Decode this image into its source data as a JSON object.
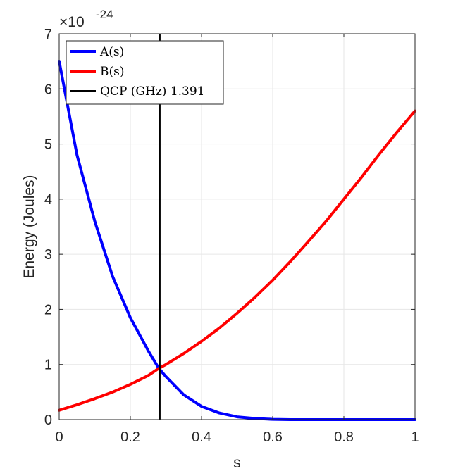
{
  "chart_data": {
    "type": "line",
    "xlabel": "s",
    "ylabel": "Energy (Joules)",
    "exponent_label": {
      "base": "×10",
      "power": "-24"
    },
    "xlim": [
      0,
      1
    ],
    "ylim": [
      0,
      7
    ],
    "x_ticks": [
      0,
      0.2,
      0.4,
      0.6,
      0.8,
      1
    ],
    "x_tick_labels": [
      "0",
      "0.2",
      "0.4",
      "0.6",
      "0.8",
      "1"
    ],
    "y_ticks": [
      0,
      1,
      2,
      3,
      4,
      5,
      6,
      7
    ],
    "y_tick_labels": [
      "0",
      "1",
      "2",
      "3",
      "4",
      "5",
      "6",
      "7"
    ],
    "grid": true,
    "legend_position": "top-left",
    "series": [
      {
        "name": "A(s)",
        "color": "#0000ff",
        "x": [
          0,
          0.05,
          0.1,
          0.15,
          0.2,
          0.25,
          0.28,
          0.3,
          0.35,
          0.4,
          0.45,
          0.5,
          0.55,
          0.6,
          0.65,
          0.7,
          0.8,
          0.9,
          1.0
        ],
        "y": [
          6.5,
          4.8,
          3.6,
          2.6,
          1.85,
          1.25,
          0.93,
          0.78,
          0.45,
          0.24,
          0.12,
          0.05,
          0.02,
          0.005,
          0.0,
          0.0,
          0.0,
          0.0,
          0.0
        ]
      },
      {
        "name": "B(s)",
        "color": "#ff0000",
        "x": [
          0,
          0.05,
          0.1,
          0.15,
          0.2,
          0.25,
          0.28,
          0.3,
          0.35,
          0.4,
          0.45,
          0.5,
          0.55,
          0.6,
          0.65,
          0.7,
          0.75,
          0.8,
          0.85,
          0.9,
          0.95,
          1.0
        ],
        "y": [
          0.17,
          0.27,
          0.38,
          0.5,
          0.64,
          0.8,
          0.93,
          1.0,
          1.2,
          1.42,
          1.66,
          1.93,
          2.22,
          2.53,
          2.87,
          3.23,
          3.6,
          4.0,
          4.4,
          4.82,
          5.22,
          5.6
        ]
      },
      {
        "name": "QCP (GHz) 1.391",
        "color": "#000000",
        "type": "vline",
        "x_value": 0.283
      }
    ]
  }
}
